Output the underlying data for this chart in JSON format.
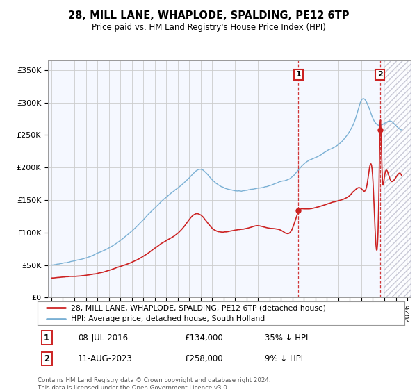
{
  "title": "28, MILL LANE, WHAPLODE, SPALDING, PE12 6TP",
  "subtitle": "Price paid vs. HM Land Registry's House Price Index (HPI)",
  "ylabel_ticks": [
    "£0",
    "£50K",
    "£100K",
    "£150K",
    "£200K",
    "£250K",
    "£300K",
    "£350K"
  ],
  "ytick_values": [
    0,
    50000,
    100000,
    150000,
    200000,
    250000,
    300000,
    350000
  ],
  "ylim": [
    0,
    365000
  ],
  "xlim_start": 1994.7,
  "xlim_end": 2026.3,
  "hpi_color": "#7ab0d4",
  "price_color": "#cc2222",
  "transaction1_date": "08-JUL-2016",
  "transaction1_price": 134000,
  "transaction1_pct": "35% ↓ HPI",
  "transaction1_x": 2016.52,
  "transaction2_date": "11-AUG-2023",
  "transaction2_price": 258000,
  "transaction2_pct": "9% ↓ HPI",
  "transaction2_x": 2023.61,
  "legend1_label": "28, MILL LANE, WHAPLODE, SPALDING, PE12 6TP (detached house)",
  "legend2_label": "HPI: Average price, detached house, South Holland",
  "footer": "Contains HM Land Registry data © Crown copyright and database right 2024.\nThis data is licensed under the Open Government Licence v3.0.",
  "plot_bg_color": "#f5f8ff",
  "grid_color": "#cccccc"
}
